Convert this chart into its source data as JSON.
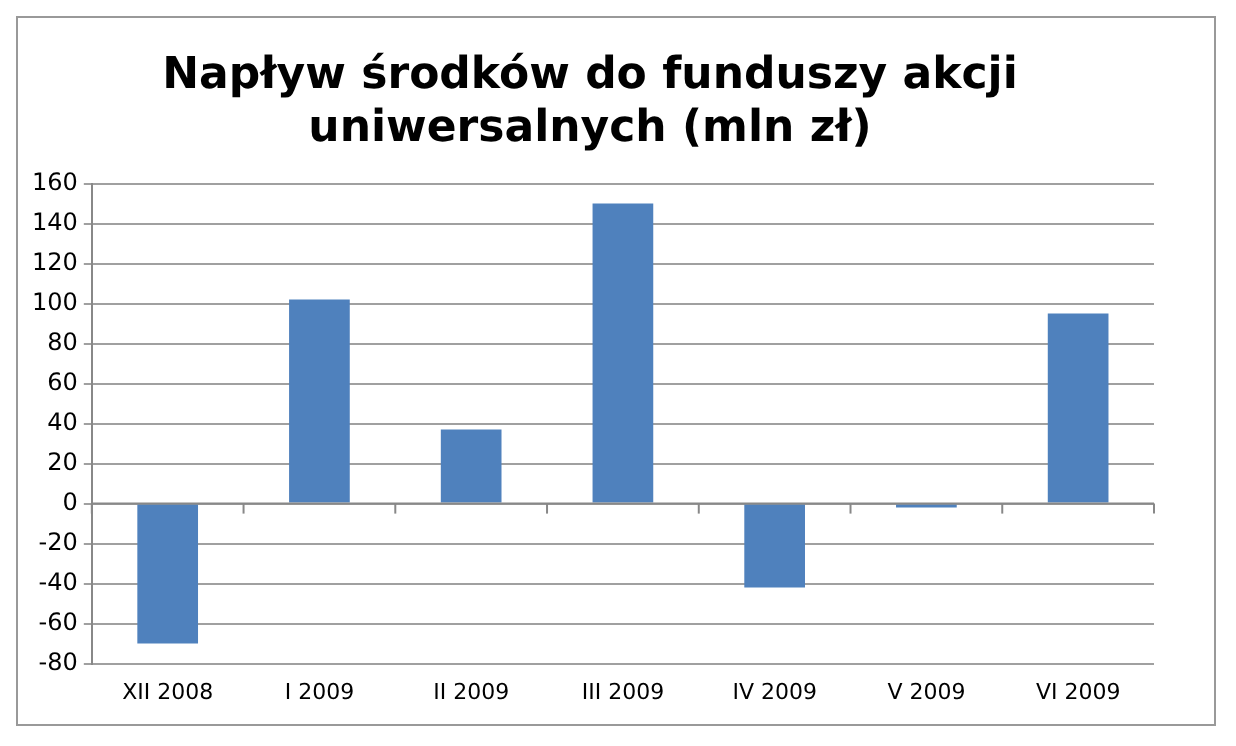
{
  "chart_data": {
    "type": "bar",
    "title": "Napływ środków do funduszy akcji uniwersalnych (mln zł)",
    "categories": [
      "XII 2008",
      "I 2009",
      "II 2009",
      "III 2009",
      "IV 2009",
      "V 2009",
      "VI 2009"
    ],
    "values": [
      -70,
      102,
      37,
      150,
      -42,
      -2,
      95
    ],
    "color": "#4f81bd",
    "ylim": [
      -80,
      160
    ],
    "yticks": [
      -80,
      -60,
      -40,
      -20,
      0,
      20,
      40,
      60,
      80,
      100,
      120,
      140,
      160
    ],
    "grid": "y"
  }
}
